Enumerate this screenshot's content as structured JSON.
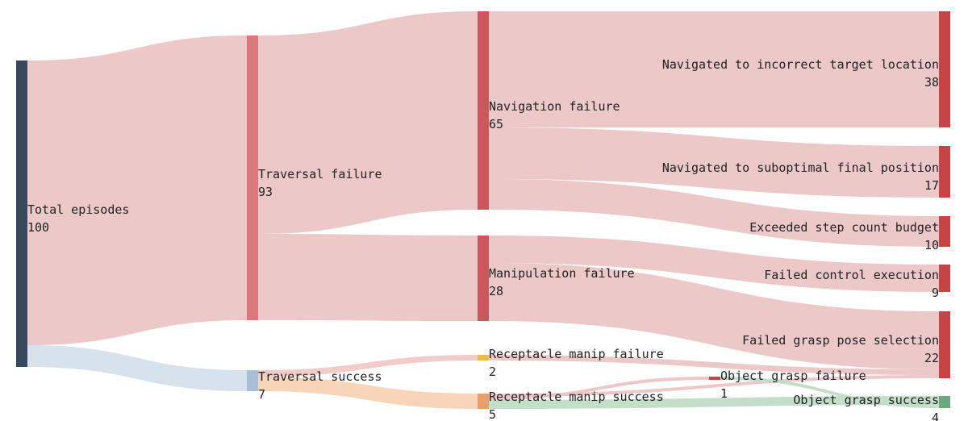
{
  "chart_data": {
    "type": "sankey",
    "nodes": [
      {
        "id": "total",
        "name": "Total episodes",
        "value": 100,
        "color": "#34495e"
      },
      {
        "id": "trav_fail",
        "name": "Traversal failure",
        "value": 93,
        "color": "#d97a7a"
      },
      {
        "id": "trav_succ",
        "name": "Traversal success",
        "value": 7,
        "color": "#a6bfd6"
      },
      {
        "id": "nav_fail",
        "name": "Navigation failure",
        "value": 65,
        "color": "#c9575b"
      },
      {
        "id": "manip_fail",
        "name": "Manipulation failure",
        "value": 28,
        "color": "#c9575b"
      },
      {
        "id": "recep_fail",
        "name": "Receptacle manip failure",
        "value": 2,
        "color": "#ebbd45"
      },
      {
        "id": "recep_succ",
        "name": "Receptacle manip success",
        "value": 5,
        "color": "#e8a06a"
      },
      {
        "id": "incorrect_target",
        "name": "Navigated to incorrect target location",
        "value": 38,
        "color": "#c74444"
      },
      {
        "id": "suboptimal",
        "name": "Navigated to suboptimal final position",
        "value": 17,
        "color": "#c74444"
      },
      {
        "id": "step_budget",
        "name": "Exceeded step count budget",
        "value": 10,
        "color": "#c74444"
      },
      {
        "id": "control_exec",
        "name": "Failed control execution",
        "value": 9,
        "color": "#c74444"
      },
      {
        "id": "grasp_pose",
        "name": "Failed grasp pose selection",
        "value": 22,
        "color": "#c74444"
      },
      {
        "id": "obj_grasp_fail",
        "name": "Object grasp failure",
        "value": 1,
        "color": "#c74444"
      },
      {
        "id": "obj_grasp_succ",
        "name": "Object grasp success",
        "value": 4,
        "color": "#6aaa7a"
      }
    ],
    "links": [
      {
        "source": "total",
        "target": "trav_fail",
        "value": 93,
        "color": "#ecc5c5"
      },
      {
        "source": "total",
        "target": "trav_succ",
        "value": 7,
        "color": "#d5e0ea"
      },
      {
        "source": "trav_fail",
        "target": "nav_fail",
        "value": 65,
        "color": "#ecc5c5"
      },
      {
        "source": "trav_fail",
        "target": "manip_fail",
        "value": 28,
        "color": "#ecc5c5"
      },
      {
        "source": "trav_succ",
        "target": "recep_fail",
        "value": 2,
        "color": "#f0c9c6"
      },
      {
        "source": "trav_succ",
        "target": "recep_succ",
        "value": 5,
        "color": "#f5d3b4"
      },
      {
        "source": "nav_fail",
        "target": "incorrect_target",
        "value": 38,
        "color": "#ecc5c5"
      },
      {
        "source": "nav_fail",
        "target": "suboptimal",
        "value": 17,
        "color": "#ecc5c5"
      },
      {
        "source": "nav_fail",
        "target": "step_budget",
        "value": 10,
        "color": "#ecc5c5"
      },
      {
        "source": "manip_fail",
        "target": "control_exec",
        "value": 9,
        "color": "#ecc5c5"
      },
      {
        "source": "manip_fail",
        "target": "grasp_pose",
        "value": 19,
        "color": "#ecc5c5"
      },
      {
        "source": "recep_fail",
        "target": "grasp_pose",
        "value": 2,
        "color": "#ecc5c5"
      },
      {
        "source": "recep_succ",
        "target": "grasp_pose",
        "value": 1,
        "color": "#ecc5c5"
      },
      {
        "source": "recep_succ",
        "target": "obj_grasp_fail",
        "value": 1,
        "color": "#ecc5c5"
      },
      {
        "source": "recep_succ",
        "target": "obj_grasp_succ",
        "value": 3,
        "color": "#c0dcc6"
      },
      {
        "source": "obj_grasp_fail",
        "target": "obj_grasp_succ",
        "value": 1,
        "color": "#c0dcc6"
      }
    ]
  }
}
